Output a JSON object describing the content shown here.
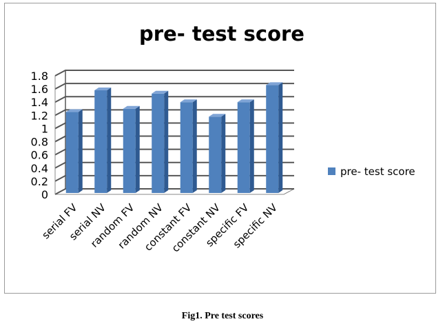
{
  "chart_data": {
    "type": "bar",
    "title": "pre- test score",
    "categories": [
      "serial FV",
      "serial NV",
      "random FV",
      "random NV",
      "constant FV",
      "constant NV",
      "specific FV",
      "specific NV"
    ],
    "series": [
      {
        "name": "pre- test score",
        "values": [
          1.25,
          1.58,
          1.3,
          1.53,
          1.4,
          1.18,
          1.4,
          1.66
        ],
        "color": "#4f81bd"
      }
    ],
    "ylim": [
      0,
      1.8
    ],
    "yticks": [
      "0",
      "0.2",
      "0.4",
      "0.6",
      "0.8",
      "1",
      "1.2",
      "1.4",
      "1.6",
      "1.8"
    ],
    "xlabel": "",
    "ylabel": "",
    "grid": true,
    "legend_position": "right",
    "style": "3d-column"
  },
  "caption": "Fig1. Pre test scores"
}
